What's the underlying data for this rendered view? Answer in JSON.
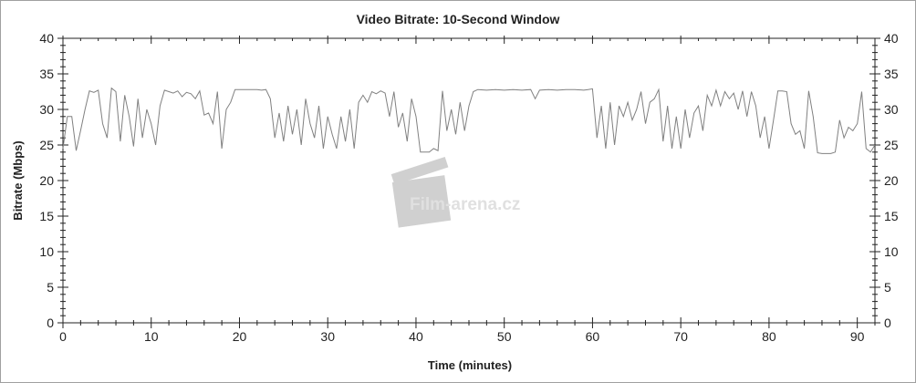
{
  "chart_data": {
    "type": "line",
    "title": "Video Bitrate: 10-Second Window",
    "xlabel": "Time (minutes)",
    "ylabel": "Bitrate (Mbps)",
    "xlim": [
      0,
      92
    ],
    "ylim": [
      0,
      40
    ],
    "xticks": [
      0,
      10,
      20,
      30,
      40,
      50,
      60,
      70,
      80,
      90
    ],
    "yticks": [
      0,
      5,
      10,
      15,
      20,
      25,
      30,
      35,
      40
    ],
    "grid": false,
    "line_color": "#808080",
    "watermark": "Film-arena.cz",
    "points": [
      [
        0,
        24.5
      ],
      [
        0.5,
        29
      ],
      [
        1,
        29
      ],
      [
        1.5,
        24.2
      ],
      [
        2,
        27
      ],
      [
        2.5,
        30
      ],
      [
        3,
        32.6
      ],
      [
        3.5,
        32.4
      ],
      [
        4,
        32.7
      ],
      [
        4.5,
        28
      ],
      [
        5,
        26
      ],
      [
        5.5,
        33
      ],
      [
        6,
        32.5
      ],
      [
        6.5,
        25.5
      ],
      [
        7,
        32
      ],
      [
        7.5,
        29
      ],
      [
        8,
        24.8
      ],
      [
        8.5,
        31.5
      ],
      [
        9,
        26
      ],
      [
        9.5,
        30
      ],
      [
        10,
        28
      ],
      [
        10.5,
        25
      ],
      [
        11,
        30.5
      ],
      [
        11.5,
        32.7
      ],
      [
        12,
        32.5
      ],
      [
        12.5,
        32.3
      ],
      [
        13,
        32.6
      ],
      [
        13.5,
        31.8
      ],
      [
        14,
        32.4
      ],
      [
        14.5,
        32.2
      ],
      [
        15,
        31.5
      ],
      [
        15.5,
        32.6
      ],
      [
        16,
        29.2
      ],
      [
        16.5,
        29.5
      ],
      [
        17,
        28
      ],
      [
        17.5,
        32.5
      ],
      [
        18,
        24.5
      ],
      [
        18.5,
        30
      ],
      [
        19,
        31
      ],
      [
        19.5,
        32.8
      ],
      [
        20,
        32.8
      ],
      [
        21,
        32.8
      ],
      [
        22,
        32.8
      ],
      [
        22.5,
        32.7
      ],
      [
        23,
        32.8
      ],
      [
        23.5,
        31.5
      ],
      [
        24,
        26
      ],
      [
        24.5,
        29.5
      ],
      [
        25,
        25.5
      ],
      [
        25.5,
        30.5
      ],
      [
        26,
        26.5
      ],
      [
        26.5,
        30
      ],
      [
        27,
        25
      ],
      [
        27.5,
        31.5
      ],
      [
        28,
        28
      ],
      [
        28.5,
        26
      ],
      [
        29,
        30.5
      ],
      [
        29.5,
        24.5
      ],
      [
        30,
        29
      ],
      [
        30.5,
        26.5
      ],
      [
        31,
        24.5
      ],
      [
        31.5,
        29
      ],
      [
        32,
        25.5
      ],
      [
        32.5,
        30
      ],
      [
        33,
        24.5
      ],
      [
        33.5,
        31
      ],
      [
        34,
        32
      ],
      [
        34.5,
        31
      ],
      [
        35,
        32.5
      ],
      [
        35.5,
        32.2
      ],
      [
        36,
        32.6
      ],
      [
        36.5,
        32.3
      ],
      [
        37,
        29
      ],
      [
        37.5,
        32.5
      ],
      [
        38,
        27.5
      ],
      [
        38.5,
        29.5
      ],
      [
        39,
        25.5
      ],
      [
        39.5,
        31.5
      ],
      [
        40,
        29
      ],
      [
        40.5,
        24
      ],
      [
        41,
        24
      ],
      [
        41.5,
        24
      ],
      [
        42,
        24.5
      ],
      [
        42.5,
        24.2
      ],
      [
        43,
        32.6
      ],
      [
        43.5,
        27
      ],
      [
        44,
        30
      ],
      [
        44.5,
        26.5
      ],
      [
        45,
        31
      ],
      [
        45.5,
        27
      ],
      [
        46,
        30.5
      ],
      [
        46.5,
        32.5
      ],
      [
        47,
        32.8
      ],
      [
        48,
        32.7
      ],
      [
        49,
        32.8
      ],
      [
        50,
        32.7
      ],
      [
        51,
        32.8
      ],
      [
        52,
        32.7
      ],
      [
        53,
        32.8
      ],
      [
        53.5,
        31.5
      ],
      [
        54,
        32.7
      ],
      [
        55,
        32.8
      ],
      [
        56,
        32.7
      ],
      [
        57,
        32.8
      ],
      [
        58,
        32.8
      ],
      [
        59,
        32.7
      ],
      [
        59.5,
        32.8
      ],
      [
        60,
        32.9
      ],
      [
        60.5,
        26
      ],
      [
        61,
        30.5
      ],
      [
        61.5,
        24.5
      ],
      [
        62,
        31
      ],
      [
        62.5,
        25
      ],
      [
        63,
        30.5
      ],
      [
        63.5,
        29
      ],
      [
        64,
        31
      ],
      [
        64.5,
        28.5
      ],
      [
        65,
        30
      ],
      [
        65.5,
        32.5
      ],
      [
        66,
        28
      ],
      [
        66.5,
        31
      ],
      [
        67,
        31.5
      ],
      [
        67.5,
        32.8
      ],
      [
        68,
        25.5
      ],
      [
        68.5,
        30.5
      ],
      [
        69,
        24.5
      ],
      [
        69.5,
        29
      ],
      [
        70,
        24.5
      ],
      [
        70.5,
        30
      ],
      [
        71,
        26
      ],
      [
        71.5,
        29.5
      ],
      [
        72,
        30.5
      ],
      [
        72.5,
        27
      ],
      [
        73,
        32
      ],
      [
        73.5,
        30.5
      ],
      [
        74,
        32.7
      ],
      [
        74.5,
        30.5
      ],
      [
        75,
        32.5
      ],
      [
        75.5,
        31.5
      ],
      [
        76,
        32.3
      ],
      [
        76.5,
        30
      ],
      [
        77,
        32.6
      ],
      [
        77.5,
        29
      ],
      [
        78,
        32.5
      ],
      [
        78.5,
        30.5
      ],
      [
        79,
        26
      ],
      [
        79.5,
        29
      ],
      [
        80,
        24.5
      ],
      [
        80.5,
        28.5
      ],
      [
        81,
        32.6
      ],
      [
        81.5,
        32.6
      ],
      [
        82,
        32.5
      ],
      [
        82.5,
        28
      ],
      [
        83,
        26.5
      ],
      [
        83.5,
        27
      ],
      [
        84,
        24.5
      ],
      [
        84.5,
        32.6
      ],
      [
        85,
        29
      ],
      [
        85.5,
        23.9
      ],
      [
        86,
        23.8
      ],
      [
        87,
        23.8
      ],
      [
        87.5,
        24
      ],
      [
        88,
        28.5
      ],
      [
        88.5,
        26
      ],
      [
        89,
        27.5
      ],
      [
        89.5,
        27
      ],
      [
        90,
        28
      ],
      [
        90.5,
        32.5
      ],
      [
        91,
        24.5
      ],
      [
        91.5,
        24
      ],
      [
        92,
        25
      ]
    ]
  }
}
